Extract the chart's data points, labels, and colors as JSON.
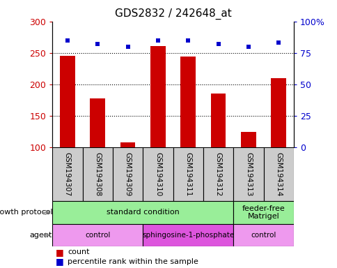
{
  "title": "GDS2832 / 242648_at",
  "samples": [
    "GSM194307",
    "GSM194308",
    "GSM194309",
    "GSM194310",
    "GSM194311",
    "GSM194312",
    "GSM194313",
    "GSM194314"
  ],
  "counts": [
    245,
    178,
    108,
    261,
    244,
    186,
    125,
    210
  ],
  "percentile_ranks": [
    85,
    82,
    80,
    85,
    85,
    82,
    80,
    83
  ],
  "ylim_left": [
    100,
    300
  ],
  "ylim_right": [
    0,
    100
  ],
  "yticks_left": [
    100,
    150,
    200,
    250,
    300
  ],
  "yticks_right": [
    0,
    25,
    50,
    75,
    100
  ],
  "ytick_labels_right": [
    "0",
    "25",
    "50",
    "75",
    "100%"
  ],
  "bar_color": "#cc0000",
  "dot_color": "#0000cc",
  "title_color": "#000000",
  "left_yaxis_color": "#cc0000",
  "right_yaxis_color": "#0000cc",
  "sample_box_color": "#cccccc",
  "growth_protocol_label": "growth protocol",
  "agent_label": "agent",
  "growth_protocol_groups": [
    {
      "label": "standard condition",
      "start": 0,
      "end": 6,
      "color": "#99ee99"
    },
    {
      "label": "feeder-free\nMatrigel",
      "start": 6,
      "end": 8,
      "color": "#99ee99"
    }
  ],
  "agent_groups": [
    {
      "label": "control",
      "start": 0,
      "end": 3,
      "color": "#ee99ee"
    },
    {
      "label": "sphingosine-1-phosphate",
      "start": 3,
      "end": 6,
      "color": "#dd55dd"
    },
    {
      "label": "control",
      "start": 6,
      "end": 8,
      "color": "#ee99ee"
    }
  ],
  "legend_items": [
    {
      "label": "count",
      "color": "#cc0000"
    },
    {
      "label": "percentile rank within the sample",
      "color": "#0000cc"
    }
  ]
}
